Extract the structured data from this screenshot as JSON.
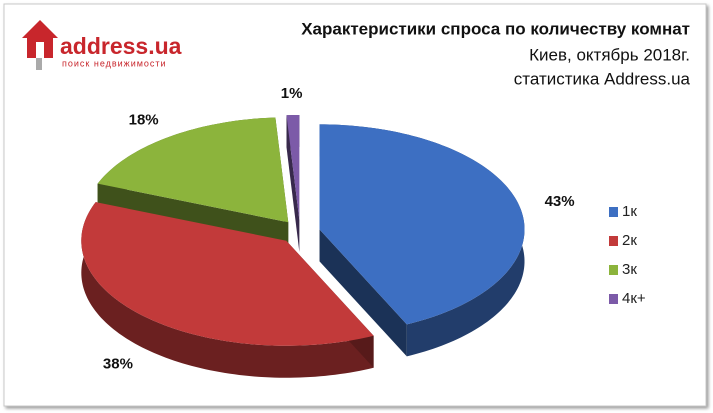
{
  "logo": {
    "name": "address.ua",
    "tagline": "поиск недвижимости"
  },
  "chart_data": {
    "type": "pie3d",
    "title": "Характеристики  спроса по количеству комнат",
    "subtitle": [
      "Киев, октябрь 2018г.",
      "статистика Address.ua"
    ],
    "categories": [
      "1к",
      "2к",
      "3к",
      "4к+"
    ],
    "values": [
      43,
      38,
      18,
      1
    ],
    "value_labels": [
      "43%",
      "38%",
      "18%",
      "1%"
    ],
    "colors": [
      "#3d6fc2",
      "#c23a3a",
      "#8cb43c",
      "#7c5aa8"
    ],
    "legend": "right"
  }
}
